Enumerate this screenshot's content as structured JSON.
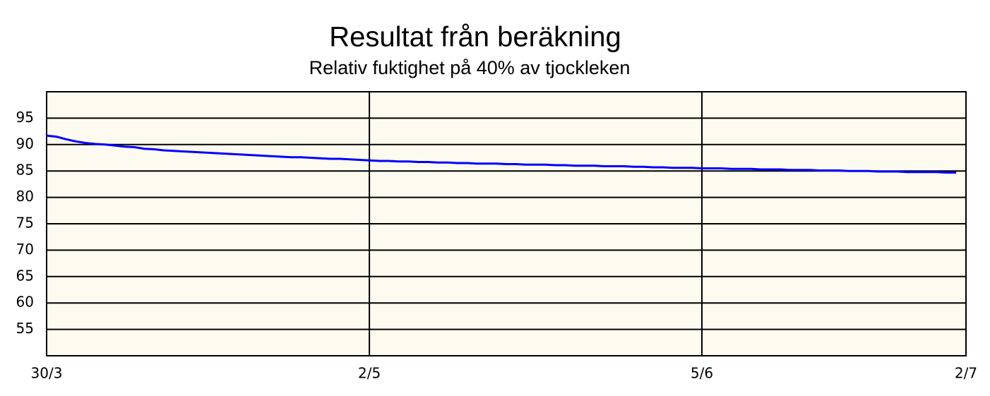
{
  "chart_data": {
    "type": "line",
    "title": "Resultat från beräkning",
    "subtitle": "Relativ fuktighet på 40% av tjockleken",
    "categories": [
      "30/3",
      null,
      null,
      null,
      null,
      null,
      null,
      null,
      null,
      null,
      null,
      null,
      null,
      null,
      null,
      null,
      null,
      null,
      null,
      null,
      null,
      null,
      null,
      null,
      null,
      null,
      null,
      null,
      null,
      null,
      null,
      null,
      null,
      "2/5",
      null,
      null,
      null,
      null,
      null,
      null,
      null,
      null,
      null,
      null,
      null,
      null,
      null,
      null,
      null,
      null,
      null,
      null,
      null,
      null,
      null,
      null,
      null,
      null,
      null,
      null,
      null,
      null,
      null,
      null,
      null,
      null,
      null,
      "5/6",
      null,
      null,
      null,
      null,
      null,
      null,
      null,
      null,
      null,
      null,
      null,
      null,
      null,
      null,
      null,
      null,
      null,
      null,
      null,
      null,
      null,
      null,
      null,
      null,
      null,
      null,
      "2/7"
    ],
    "values": [
      91.7,
      91.5,
      91.0,
      90.6,
      90.3,
      90.1,
      90.0,
      89.8,
      89.6,
      89.5,
      89.2,
      89.1,
      88.9,
      88.8,
      88.7,
      88.6,
      88.5,
      88.4,
      88.3,
      88.2,
      88.1,
      88.0,
      87.9,
      87.8,
      87.7,
      87.6,
      87.6,
      87.5,
      87.4,
      87.3,
      87.3,
      87.2,
      87.1,
      87.0,
      86.9,
      86.9,
      86.8,
      86.8,
      86.7,
      86.7,
      86.6,
      86.6,
      86.5,
      86.5,
      86.4,
      86.4,
      86.4,
      86.3,
      86.3,
      86.2,
      86.2,
      86.2,
      86.1,
      86.1,
      86.0,
      86.0,
      86.0,
      85.9,
      85.9,
      85.9,
      85.8,
      85.8,
      85.7,
      85.7,
      85.6,
      85.6,
      85.6,
      85.5,
      85.5,
      85.5,
      85.4,
      85.4,
      85.4,
      85.3,
      85.3,
      85.3,
      85.2,
      85.2,
      85.2,
      85.1,
      85.1,
      85.1,
      85.0,
      85.0,
      85.0,
      84.9,
      84.9,
      84.9,
      84.8,
      84.8,
      84.8,
      84.8,
      84.7,
      84.7,
      null
    ],
    "color": "#0000ff",
    "ylim": [
      50,
      100
    ],
    "yticks": [
      55,
      60,
      65,
      70,
      75,
      80,
      85,
      90,
      95
    ],
    "grid": true
  }
}
